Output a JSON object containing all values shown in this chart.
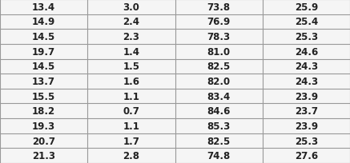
{
  "rows": [
    [
      13.4,
      3.0,
      73.8,
      25.9
    ],
    [
      14.9,
      2.4,
      76.9,
      25.4
    ],
    [
      14.5,
      2.3,
      78.3,
      25.3
    ],
    [
      19.7,
      1.4,
      81.0,
      24.6
    ],
    [
      14.5,
      1.5,
      82.5,
      24.3
    ],
    [
      13.7,
      1.6,
      82.0,
      24.3
    ],
    [
      15.5,
      1.1,
      83.4,
      23.9
    ],
    [
      18.2,
      0.7,
      84.6,
      23.7
    ],
    [
      19.3,
      1.1,
      85.3,
      23.9
    ],
    [
      20.7,
      1.7,
      82.5,
      25.3
    ],
    [
      21.3,
      2.8,
      74.8,
      27.6
    ]
  ],
  "background_color": "#f5f5f5",
  "line_color": "#999999",
  "text_color": "#222222",
  "font_size": 8.5,
  "font_weight": "bold"
}
